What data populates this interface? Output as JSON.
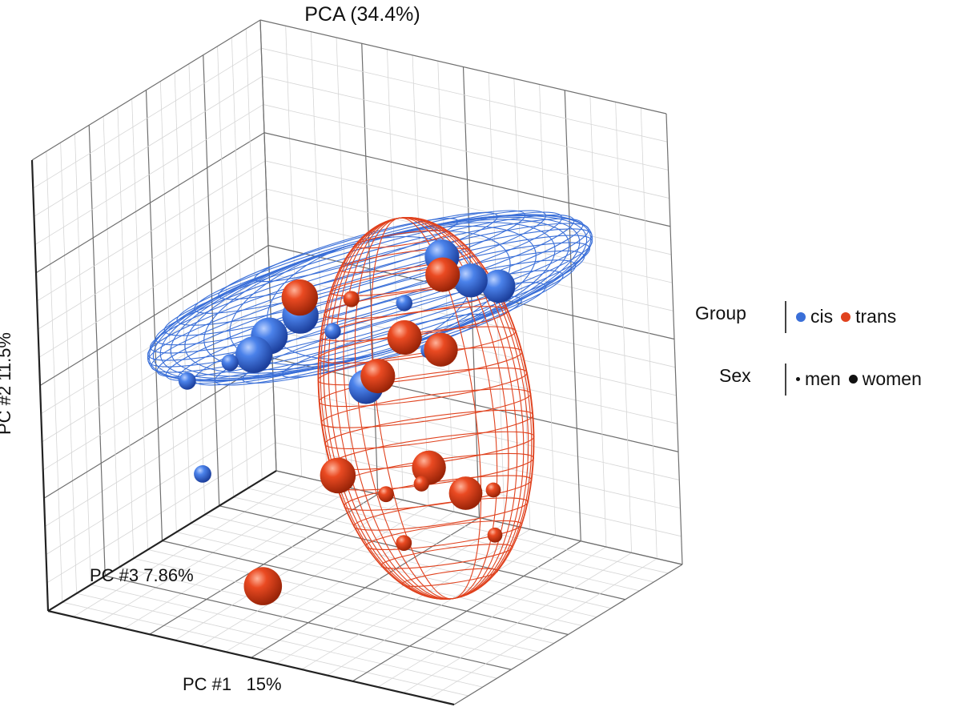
{
  "chart_data": {
    "type": "scatter",
    "projection": "3d",
    "title": "PCA (34.4%)",
    "axes": {
      "x": {
        "label": "PC #1",
        "variance": "15%"
      },
      "y": {
        "label": "PC #2 11.5%"
      },
      "z": {
        "label": "PC #3 7.86%"
      }
    },
    "grid": true,
    "legend_placement": "right",
    "legend": {
      "group": {
        "title": "Group",
        "entries": [
          {
            "label": "cis",
            "color": "#3a6fd8"
          },
          {
            "label": "trans",
            "color": "#e0421e"
          }
        ]
      },
      "sex": {
        "title": "Sex",
        "entries": [
          {
            "label": "men",
            "marker": "small"
          },
          {
            "label": "women",
            "marker": "large"
          }
        ]
      }
    },
    "series": [
      {
        "name": "cis",
        "color": "#3a6fd8",
        "confidence_ellipsoid": true,
        "points": [
          {
            "x": 0.72,
            "y": 0.78,
            "z": 0.5,
            "sex": "women"
          },
          {
            "x": 0.76,
            "y": 0.72,
            "z": 0.55,
            "sex": "women"
          },
          {
            "x": 0.8,
            "y": 0.7,
            "z": 0.6,
            "sex": "women"
          },
          {
            "x": 0.68,
            "y": 0.7,
            "z": 0.4,
            "sex": "men"
          },
          {
            "x": 0.45,
            "y": 0.64,
            "z": 0.35,
            "sex": "women"
          },
          {
            "x": 0.4,
            "y": 0.6,
            "z": 0.3,
            "sex": "women"
          },
          {
            "x": 0.36,
            "y": 0.55,
            "z": 0.3,
            "sex": "women"
          },
          {
            "x": 0.3,
            "y": 0.52,
            "z": 0.3,
            "sex": "men"
          },
          {
            "x": 0.25,
            "y": 0.5,
            "z": 0.2,
            "sex": "men"
          },
          {
            "x": 0.5,
            "y": 0.6,
            "z": 0.4,
            "sex": "men"
          },
          {
            "x": 0.52,
            "y": 0.45,
            "z": 0.5,
            "sex": "women"
          },
          {
            "x": 0.62,
            "y": 0.52,
            "z": 0.6,
            "sex": "men"
          },
          {
            "x": 0.28,
            "y": 0.3,
            "z": 0.2,
            "sex": "men"
          }
        ]
      },
      {
        "name": "trans",
        "color": "#e0421e",
        "confidence_ellipsoid": true,
        "points": [
          {
            "x": 0.45,
            "y": 0.68,
            "z": 0.35,
            "sex": "women"
          },
          {
            "x": 0.52,
            "y": 0.66,
            "z": 0.45,
            "sex": "men"
          },
          {
            "x": 0.62,
            "y": 0.58,
            "z": 0.5,
            "sex": "women"
          },
          {
            "x": 0.68,
            "y": 0.55,
            "z": 0.55,
            "sex": "women"
          },
          {
            "x": 0.72,
            "y": 0.74,
            "z": 0.5,
            "sex": "women"
          },
          {
            "x": 0.55,
            "y": 0.48,
            "z": 0.5,
            "sex": "women"
          },
          {
            "x": 0.5,
            "y": 0.28,
            "z": 0.4,
            "sex": "women"
          },
          {
            "x": 0.64,
            "y": 0.28,
            "z": 0.55,
            "sex": "women"
          },
          {
            "x": 0.7,
            "y": 0.22,
            "z": 0.6,
            "sex": "women"
          },
          {
            "x": 0.56,
            "y": 0.22,
            "z": 0.5,
            "sex": "men"
          },
          {
            "x": 0.62,
            "y": 0.24,
            "z": 0.55,
            "sex": "men"
          },
          {
            "x": 0.74,
            "y": 0.22,
            "z": 0.65,
            "sex": "men"
          },
          {
            "x": 0.6,
            "y": 0.12,
            "z": 0.5,
            "sex": "men"
          },
          {
            "x": 0.74,
            "y": 0.12,
            "z": 0.65,
            "sex": "men"
          },
          {
            "x": 0.42,
            "y": 0.08,
            "z": 0.2,
            "sex": "women"
          }
        ]
      }
    ]
  }
}
